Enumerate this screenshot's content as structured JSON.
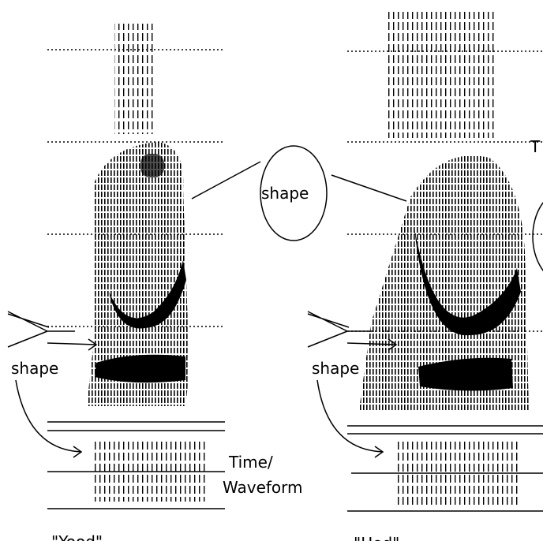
{
  "center_label": "shape",
  "left": {
    "label": "shape",
    "word": "\"Yood\""
  },
  "right": {
    "label": "shape",
    "word": "\"Hod\"",
    "edge_text": "T"
  },
  "waveform_label": {
    "line1": "Time/",
    "line2": "Waveform"
  }
}
